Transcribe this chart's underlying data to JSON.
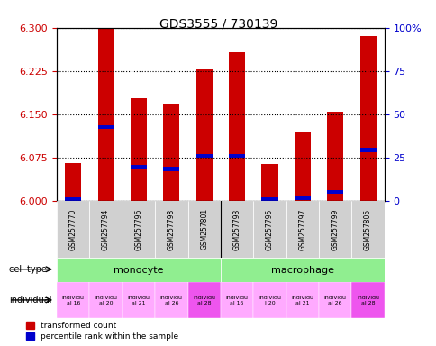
{
  "title": "GDS3555 / 730139",
  "samples": [
    "GSM257770",
    "GSM257794",
    "GSM257796",
    "GSM257798",
    "GSM257801",
    "GSM257793",
    "GSM257795",
    "GSM257797",
    "GSM257799",
    "GSM257805"
  ],
  "bar_tops": [
    6.065,
    6.3,
    6.178,
    6.168,
    6.228,
    6.258,
    6.063,
    6.118,
    6.155,
    6.285
  ],
  "bar_base": 6.0,
  "blue_positions": [
    6.003,
    6.128,
    6.058,
    6.055,
    6.078,
    6.078,
    6.003,
    6.005,
    6.015,
    6.088
  ],
  "ylim_left": [
    6.0,
    6.3
  ],
  "yticks_left": [
    6.0,
    6.075,
    6.15,
    6.225,
    6.3
  ],
  "yticks_right": [
    0,
    25,
    50,
    75,
    100
  ],
  "cell_type_color": "#90ee90",
  "individual_labels": [
    "individu\nal 16",
    "individu\nal 20",
    "individu\nal 21",
    "individu\nal 26",
    "individu\nal 28",
    "individu\nal 16",
    "individu\nl 20",
    "individu\nal 21",
    "individu\nal 26",
    "individu\nal 28"
  ],
  "individual_colors": [
    "#ffaaff",
    "#ffaaff",
    "#ffaaff",
    "#ffaaff",
    "#ee55ee",
    "#ffaaff",
    "#ffaaff",
    "#ffaaff",
    "#ffaaff",
    "#ee55ee"
  ],
  "bar_color": "#cc0000",
  "blue_color": "#0000cc",
  "axis_color_left": "#cc0000",
  "axis_color_right": "#0000cc",
  "grid_color": "#000000",
  "bg_color": "#ffffff",
  "tick_label_bg": "#d0d0d0"
}
